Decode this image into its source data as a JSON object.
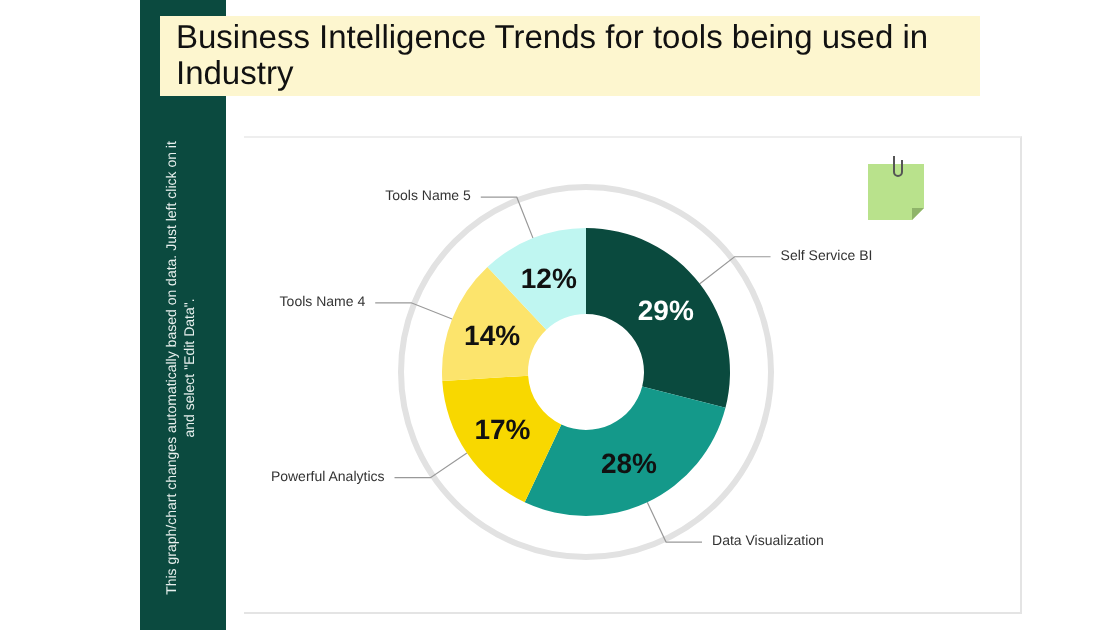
{
  "chart_data": {
    "type": "donut",
    "title": "Business Intelligence Trends for tools being used in Industry",
    "categories": [
      "Self Service BI",
      "Data Visualization",
      "Powerful Analytics",
      "Tools Name 4",
      "Tools Name 5"
    ],
    "values": [
      29,
      28,
      17,
      14,
      12
    ],
    "value_labels": [
      "29%",
      "28%",
      "17%",
      "14%",
      "12%"
    ],
    "colors": [
      "#0a4a3e",
      "#14998a",
      "#f8d800",
      "#fce46c",
      "#bff6f1"
    ],
    "annotations": [
      "This graph/chart changes automatically based on data. Just left click on it and select \"Edit Data\"."
    ],
    "legend": false
  }
}
